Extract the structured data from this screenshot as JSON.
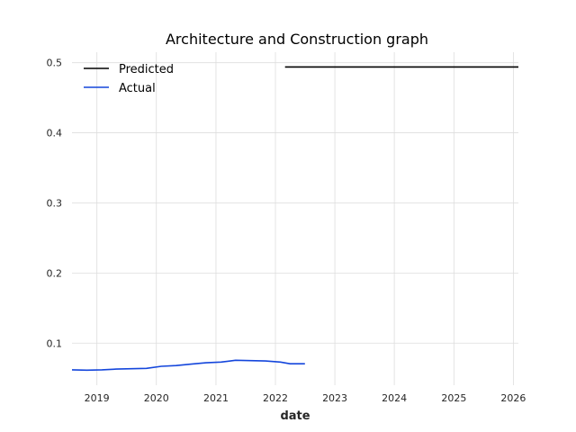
{
  "chart_data": {
    "type": "line",
    "title": "Architecture and Construction graph",
    "xlabel": "date",
    "ylabel": "",
    "x_axis": "date",
    "xlim": [
      "2018-08-01",
      "2026-02-01"
    ],
    "ylim": [
      0.04,
      0.515
    ],
    "x_ticks": [
      "2019",
      "2020",
      "2021",
      "2022",
      "2023",
      "2024",
      "2025",
      "2026"
    ],
    "y_ticks": [
      "0.1",
      "0.2",
      "0.3",
      "0.4",
      "0.5"
    ],
    "grid": true,
    "legend_position": "top-left",
    "series": [
      {
        "name": "Predicted",
        "color": "#000000",
        "points": [
          {
            "x": "2022-03-01",
            "y": 0.494
          },
          {
            "x": "2026-02-01",
            "y": 0.494
          }
        ]
      },
      {
        "name": "Actual",
        "color": "#1446dc",
        "points": [
          {
            "x": "2018-08-01",
            "y": 0.062
          },
          {
            "x": "2018-11-01",
            "y": 0.0615
          },
          {
            "x": "2019-02-01",
            "y": 0.062
          },
          {
            "x": "2019-05-01",
            "y": 0.063
          },
          {
            "x": "2019-08-01",
            "y": 0.0635
          },
          {
            "x": "2019-11-01",
            "y": 0.064
          },
          {
            "x": "2020-02-01",
            "y": 0.067
          },
          {
            "x": "2020-05-01",
            "y": 0.068
          },
          {
            "x": "2020-08-01",
            "y": 0.07
          },
          {
            "x": "2020-11-01",
            "y": 0.072
          },
          {
            "x": "2021-02-01",
            "y": 0.073
          },
          {
            "x": "2021-05-01",
            "y": 0.0755
          },
          {
            "x": "2021-08-01",
            "y": 0.075
          },
          {
            "x": "2021-11-01",
            "y": 0.0745
          },
          {
            "x": "2022-02-01",
            "y": 0.073
          },
          {
            "x": "2022-04-01",
            "y": 0.0705
          },
          {
            "x": "2022-07-01",
            "y": 0.0705
          }
        ]
      }
    ]
  }
}
